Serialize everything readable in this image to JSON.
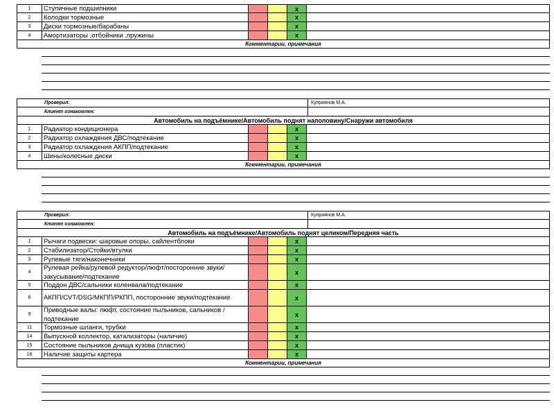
{
  "section0": {
    "items": [
      {
        "num": "1",
        "name": "Ступичные подшипники",
        "mark": "x"
      },
      {
        "num": "2",
        "name": "Колодки тормозные",
        "mark": "x"
      },
      {
        "num": "3",
        "name": "Диски тормозные/барабаны",
        "mark": "x"
      },
      {
        "num": "4",
        "name": "Амортизаторы ,отбойники ,пружины",
        "mark": "x"
      }
    ],
    "comments_label": "Комментарии, примечания",
    "checked_label": "Проверил:",
    "checked_value": "Куприянов М.А.",
    "client_label": "Клиент ознакомлен:",
    "client_value": "."
  },
  "section1": {
    "title": "Автомобиль на подъёмнике/Автомобиль поднят наполовину/Снаружи автомобиля",
    "items": [
      {
        "num": "1",
        "name": "Радиатор кондиционера",
        "mark": "x"
      },
      {
        "num": "2",
        "name": "Радиатор охлаждения ДВС/подтекание",
        "mark": "x"
      },
      {
        "num": "3",
        "name": "Радиатор охлаждения АКПП/подтекание",
        "mark": "x"
      },
      {
        "num": "4",
        "name": "Шины/колесные диски",
        "mark": "x"
      }
    ],
    "comments_label": "Комментарии, примечания",
    "checked_label": "Проверил:",
    "checked_value": "Куприянов М.А.",
    "client_label": "Клиент ознакомлен:",
    "client_value": ""
  },
  "section2": {
    "title": "Автомобиль на подъёмнике/Автомобиль поднят целиком/Передняя часть",
    "items": [
      {
        "num": "1",
        "name": "Рычаги подвески: шаровые опоры, сайлентблоки",
        "mark": "x"
      },
      {
        "num": "2",
        "name": "Стабилизатор/Стойки/втулки",
        "mark": "x"
      },
      {
        "num": "3",
        "name": "Рулевые тяги/наконечники",
        "mark": "x"
      },
      {
        "num": "4",
        "name": "Рулевая рейка/рулевой редуктор/люфт/посторонние звуки/закусывание/подтекание",
        "mark": "x"
      },
      {
        "num": "5",
        "name": "Поддон ДВС/сальники коленвала/подтекание",
        "mark": "x"
      },
      {
        "num": "6",
        "name": "АКПП/CVT/DSG/МКПП/РКПП, посторонние звуки/подтекание",
        "mark": "x"
      },
      {
        "num": "9",
        "name": "Приводные валы: люфт, состояние пыльников, сальников / подтекание",
        "mark": "x"
      },
      {
        "num": "11",
        "name": "Тормозные шланги, трубки",
        "mark": "x"
      },
      {
        "num": "14",
        "name": "Выпускной коллектор, катализаторы (наличие)",
        "mark": "x"
      },
      {
        "num": "15",
        "name": "Состояние пыльников днища кузова (пластик)",
        "mark": "x"
      },
      {
        "num": "16",
        "name": "Наличие защиты картера",
        "mark": "x"
      }
    ],
    "comments_label": "Комментарии, примечания"
  }
}
